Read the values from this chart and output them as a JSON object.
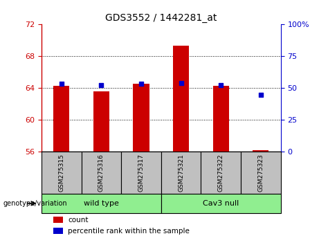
{
  "title": "GDS3552 / 1442281_at",
  "samples": [
    "GSM275315",
    "GSM275316",
    "GSM275317",
    "GSM275321",
    "GSM275322",
    "GSM275323"
  ],
  "bar_values": [
    64.3,
    63.6,
    64.6,
    69.3,
    64.3,
    56.2
  ],
  "percentile_values": [
    53.5,
    52.5,
    53.5,
    54.0,
    52.5,
    45.0
  ],
  "bar_color": "#cc0000",
  "percentile_color": "#0000cc",
  "ylim_left": [
    56,
    72
  ],
  "ylim_right": [
    0,
    100
  ],
  "yticks_left": [
    56,
    60,
    64,
    68,
    72
  ],
  "yticks_right": [
    0,
    25,
    50,
    75,
    100
  ],
  "ytick_labels_right": [
    "0",
    "25",
    "50",
    "75",
    "100%"
  ],
  "groups": [
    {
      "label": "wild type",
      "indices": [
        0,
        1,
        2
      ],
      "color": "#90ee90"
    },
    {
      "label": "Cav3 null",
      "indices": [
        3,
        4,
        5
      ],
      "color": "#90ee90"
    }
  ],
  "genotype_label": "genotype/variation",
  "legend_count_label": "count",
  "legend_percentile_label": "percentile rank within the sample",
  "grid_color": "#000000",
  "bg_color": "#ffffff",
  "plot_bg_color": "#ffffff",
  "label_area_color": "#c0c0c0",
  "group_area_color": "#90ee90"
}
